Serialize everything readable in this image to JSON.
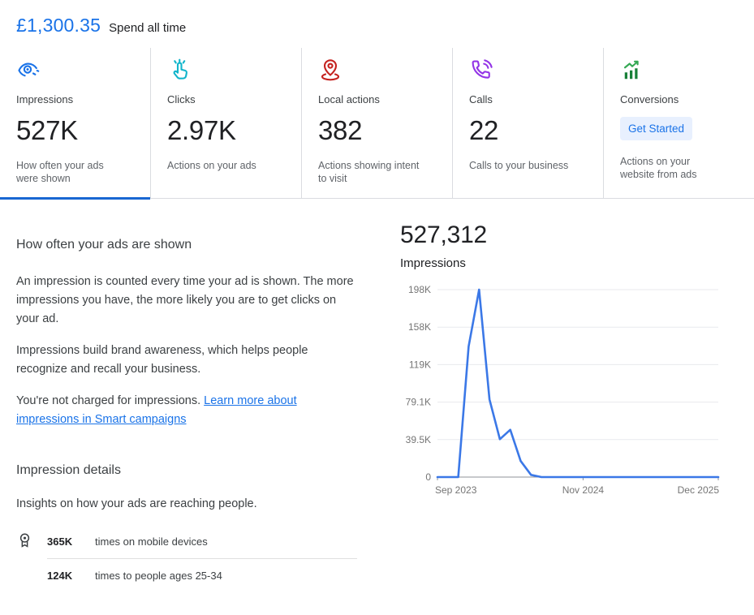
{
  "header": {
    "amount": "£1,300.35",
    "label": "Spend all time"
  },
  "metric_cards": [
    {
      "id": "impressions",
      "icon": "eye-icon",
      "label": "Impressions",
      "value": "527K",
      "description": "How often your ads were shown",
      "accent": "#1a73e8",
      "active": true
    },
    {
      "id": "clicks",
      "icon": "click-hand-icon",
      "label": "Clicks",
      "value": "2.97K",
      "description": "Actions on your ads",
      "accent": "#12b5cb",
      "active": false
    },
    {
      "id": "local-actions",
      "icon": "location-pin-icon",
      "label": "Local actions",
      "value": "382",
      "description": "Actions showing intent to visit",
      "accent": "#c5221f",
      "active": false
    },
    {
      "id": "calls",
      "icon": "phone-waves-icon",
      "label": "Calls",
      "value": "22",
      "description": "Calls to your business",
      "accent": "#9334e6",
      "active": false
    },
    {
      "id": "conversions",
      "icon": "trending-bars-icon",
      "label": "Conversions",
      "value": "Get Started",
      "description": "Actions on your website from ads",
      "accent": "#188038",
      "active": false,
      "is_button": true
    }
  ],
  "info_section": {
    "title": "How often your ads are shown",
    "paragraph1": "An impression is counted every time your ad is shown. The more impressions you have, the more likely you are to get clicks on your ad.",
    "paragraph2": "Impressions build brand awareness, which helps people recognize and recall your business.",
    "paragraph3_prefix": "You're not charged for impressions. ",
    "paragraph3_link": "Learn more about impressions in Smart campaigns"
  },
  "details_section": {
    "title": "Impression details",
    "subtitle": "Insights on how your ads are reaching people.",
    "rows": [
      {
        "icon": "award-badge-icon",
        "value": "365K",
        "text": "times on mobile devices"
      },
      {
        "icon": "",
        "value": "124K",
        "text": "times to people ages 25-34"
      }
    ]
  },
  "chart_header": {
    "total": "527,312",
    "metric_label": "Impressions"
  },
  "chart_data": {
    "type": "line",
    "title": "Impressions over time",
    "x": [
      "Sep 2023",
      "Oct 2023",
      "Nov 2023",
      "Dec 2023",
      "Jan 2024",
      "Feb 2024",
      "Mar 2024",
      "Apr 2024",
      "May 2024",
      "Jun 2024",
      "Jul 2024",
      "Aug 2024",
      "Sep 2024",
      "Oct 2024",
      "Nov 2024",
      "Dec 2024",
      "Jan 2025",
      "Feb 2025",
      "Mar 2025",
      "Apr 2025",
      "May 2025",
      "Jun 2025",
      "Jul 2025",
      "Aug 2025",
      "Sep 2025",
      "Oct 2025",
      "Nov 2025",
      "Dec 2025"
    ],
    "values": [
      0,
      0,
      0,
      138000,
      198000,
      82000,
      40000,
      50000,
      17000,
      2312,
      0,
      0,
      0,
      0,
      0,
      0,
      0,
      0,
      0,
      0,
      0,
      0,
      0,
      0,
      0,
      0,
      0,
      0
    ],
    "total": 527312,
    "xlabel": "",
    "ylabel": "Impressions",
    "ylim": [
      0,
      198000
    ],
    "y_tick_labels": [
      "198K",
      "158K",
      "119K",
      "79.1K",
      "39.5K",
      "0"
    ],
    "x_tick_labels": [
      "Sep 2023",
      "Nov 2024",
      "Dec 2025"
    ],
    "x_tick_indices": [
      0,
      14,
      27
    ],
    "grid": true,
    "legend": "none",
    "line_color": "#3b78e7"
  },
  "colors": {
    "accent_blue": "#1a73e8",
    "active_tab_underline": "#1967d2",
    "chip_background": "#e8f0fe",
    "clicks_teal": "#12b5cb",
    "local_actions_red": "#c5221f",
    "calls_purple": "#9334e6",
    "conversions_green": "#188038",
    "chart_line_blue": "#3b78e7",
    "gridline_gray": "#e8eaed",
    "axis_label_gray": "#757575"
  }
}
